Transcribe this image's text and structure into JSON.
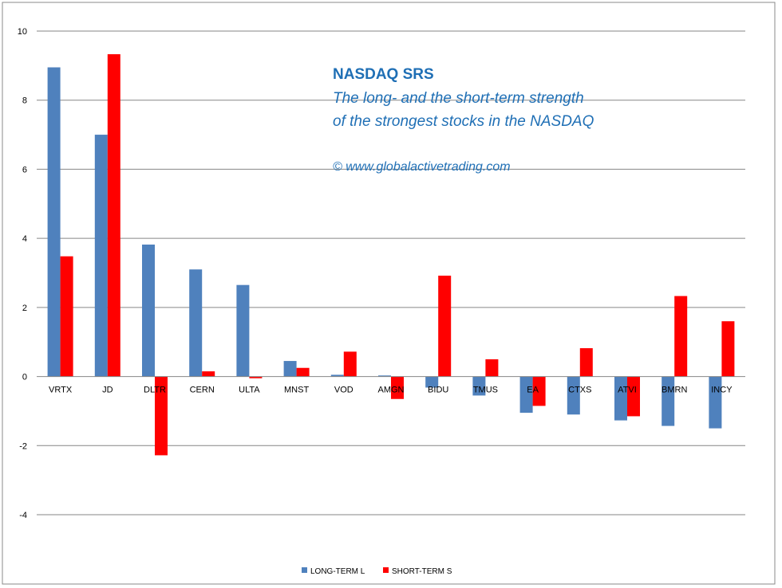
{
  "chart_data": {
    "type": "bar",
    "title": "NASDAQ SRS",
    "subtitle_lines": [
      "The long- and the short-term  strength",
      "of the  strongest stocks in the NASDAQ"
    ],
    "credit": "© www.globalactivetrading.com",
    "categories": [
      "VRTX",
      "JD",
      "DLTR",
      "CERN",
      "ULTA",
      "MNST",
      "VOD",
      "AMGN",
      "BIDU",
      "TMUS",
      "EA",
      "CTXS",
      "ATVI",
      "BMRN",
      "INCY"
    ],
    "series": [
      {
        "name": "LONG-TERM  L",
        "color": "#4f81bd",
        "values": [
          8.95,
          7.0,
          3.82,
          3.1,
          2.65,
          0.45,
          0.05,
          0.03,
          -0.32,
          -0.55,
          -1.05,
          -1.1,
          -1.27,
          -1.43,
          -1.5
        ]
      },
      {
        "name": "SHORT-TERM  S",
        "color": "#ff0000",
        "values": [
          3.48,
          9.33,
          -2.28,
          0.15,
          -0.05,
          0.25,
          0.72,
          -0.65,
          2.92,
          0.5,
          -0.85,
          0.82,
          -1.15,
          2.33,
          1.6
        ]
      }
    ],
    "ylim": [
      -4,
      10
    ],
    "yticks": [
      -4,
      -2,
      0,
      2,
      4,
      6,
      8,
      10
    ],
    "grid": true,
    "legend_position": "bottom-center"
  }
}
